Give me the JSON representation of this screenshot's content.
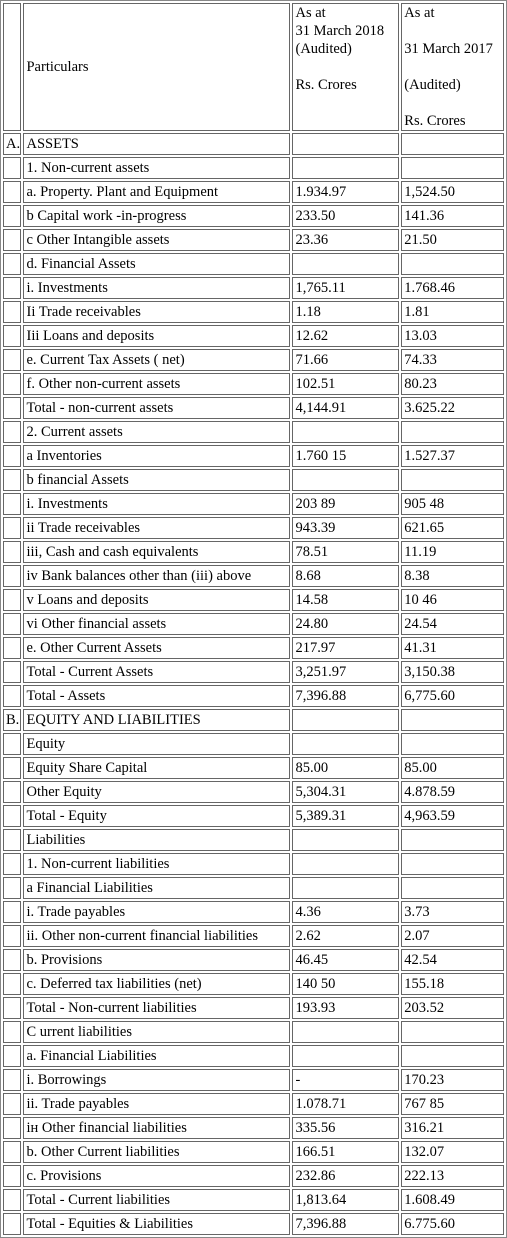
{
  "header": {
    "particulars": "Particulars",
    "col2018": [
      "As at",
      "31 March 2018",
      "(Audited)",
      "",
      "Rs. Crores"
    ],
    "col2017": [
      "As at",
      "",
      "31 March 2017",
      "",
      "(Audited)",
      "",
      "Rs. Crores"
    ]
  },
  "rows": [
    {
      "sec": "A.",
      "label": "ASSETS",
      "v2018": "",
      "v2017": ""
    },
    {
      "sec": "",
      "label": "1. Non-current assets",
      "v2018": "",
      "v2017": ""
    },
    {
      "sec": "",
      "label": "a. Property. Plant and Equipment",
      "v2018": "1.934.97",
      "v2017": "1,524.50"
    },
    {
      "sec": "",
      "label": "b Capital work -in-progress",
      "v2018": "233.50",
      "v2017": "141.36"
    },
    {
      "sec": "",
      "label": "c Other Intangible assets",
      "v2018": "23.36",
      "v2017": "21.50"
    },
    {
      "sec": "",
      "label": "d. Financial Assets",
      "v2018": "",
      "v2017": ""
    },
    {
      "sec": "",
      "label": "i. Investments",
      "v2018": "1,765.11",
      "v2017": "1.768.46"
    },
    {
      "sec": "",
      "label": "Ii Trade receivables",
      "v2018": "1.18",
      "v2017": "1.81"
    },
    {
      "sec": "",
      "label": "Iii Loans and deposits",
      "v2018": "12.62",
      "v2017": "13.03"
    },
    {
      "sec": "",
      "label": "e. Current Tax Assets ( net)",
      "v2018": "71.66",
      "v2017": "74.33"
    },
    {
      "sec": "",
      "label": "f. Other non-current assets",
      "v2018": "102.51",
      "v2017": "80.23"
    },
    {
      "sec": "",
      "label": "Total - non-current assets",
      "v2018": "4,144.91",
      "v2017": "3.625.22"
    },
    {
      "sec": "",
      "label": "2. Current assets",
      "v2018": "",
      "v2017": ""
    },
    {
      "sec": "",
      "label": "a Inventories",
      "v2018": "1.760 15",
      "v2017": "1.527.37"
    },
    {
      "sec": "",
      "label": "b financial Assets",
      "v2018": "",
      "v2017": ""
    },
    {
      "sec": "",
      "label": "i. Investments",
      "v2018": "203 89",
      "v2017": "905 48"
    },
    {
      "sec": "",
      "label": "ii Trade receivables",
      "v2018": "943.39",
      "v2017": "621.65"
    },
    {
      "sec": "",
      "label": "iii, Cash and cash equivalents",
      "v2018": "78.51",
      "v2017": "11.19"
    },
    {
      "sec": "",
      "label": "iv Bank balances other than (iii) above",
      "v2018": "8.68",
      "v2017": "8.38"
    },
    {
      "sec": "",
      "label": "v Loans and deposits",
      "v2018": "14.58",
      "v2017": "10 46"
    },
    {
      "sec": "",
      "label": "vi Other financial assets",
      "v2018": "24.80",
      "v2017": "24.54"
    },
    {
      "sec": "",
      "label": "e. Other Current Assets",
      "v2018": "217.97",
      "v2017": "41.31"
    },
    {
      "sec": "",
      "label": "Total - Current Assets",
      "v2018": "3,251.97",
      "v2017": "3,150.38"
    },
    {
      "sec": "",
      "label": "Total - Assets",
      "v2018": "7,396.88",
      "v2017": "6,775.60"
    },
    {
      "sec": "B.",
      "label": "EQUITY AND LIABILITIES",
      "v2018": "",
      "v2017": ""
    },
    {
      "sec": "",
      "label": "Equity",
      "v2018": "",
      "v2017": ""
    },
    {
      "sec": "",
      "label": "Equity Share Capital",
      "v2018": "85.00",
      "v2017": "85.00"
    },
    {
      "sec": "",
      "label": "Other Equity",
      "v2018": "5,304.31",
      "v2017": "4.878.59"
    },
    {
      "sec": "",
      "label": "Total - Equity",
      "v2018": "5,389.31",
      "v2017": "4,963.59"
    },
    {
      "sec": "",
      "label": "Liabilities",
      "v2018": "",
      "v2017": ""
    },
    {
      "sec": "",
      "label": "1. Non-current liabilities",
      "v2018": "",
      "v2017": ""
    },
    {
      "sec": "",
      "label": "a Financial Liabilities",
      "v2018": "",
      "v2017": ""
    },
    {
      "sec": "",
      "label": "i. Trade payables",
      "v2018": "4.36",
      "v2017": "3.73"
    },
    {
      "sec": "",
      "label": "ii. Other non-current financial liabilities",
      "v2018": "2.62",
      "v2017": "2.07"
    },
    {
      "sec": "",
      "label": "b. Provisions",
      "v2018": "46.45",
      "v2017": "42.54"
    },
    {
      "sec": "",
      "label": "c. Deferred tax liabilities (net)",
      "v2018": "140 50",
      "v2017": "155.18"
    },
    {
      "sec": "",
      "label": "Total - Non-current liabilities",
      "v2018": "193.93",
      "v2017": "203.52"
    },
    {
      "sec": "",
      "label": "C urrent liabilities",
      "v2018": "",
      "v2017": ""
    },
    {
      "sec": "",
      "label": "a. Financial Liabilities",
      "v2018": "",
      "v2017": ""
    },
    {
      "sec": "",
      "label": "i. Borrowings",
      "v2018": "-",
      "v2017": "170.23"
    },
    {
      "sec": "",
      "label": "ii. Trade payables",
      "v2018": "1.078.71",
      "v2017": "767 85"
    },
    {
      "sec": "",
      "label": "iн Other financial liabilities",
      "v2018": "335.56",
      "v2017": "316.21"
    },
    {
      "sec": "",
      "label": "b. Other Current liabilities",
      "v2018": "166.51",
      "v2017": "132.07"
    },
    {
      "sec": "",
      "label": "c. Provisions",
      "v2018": "232.86",
      "v2017": "222.13"
    },
    {
      "sec": "",
      "label": "Total - Current liabilities",
      "v2018": "1,813.64",
      "v2017": "1.608.49"
    },
    {
      "sec": "",
      "label": "Total - Equities & Liabilities",
      "v2018": "7,396.88",
      "v2017": "6.775.60"
    }
  ]
}
